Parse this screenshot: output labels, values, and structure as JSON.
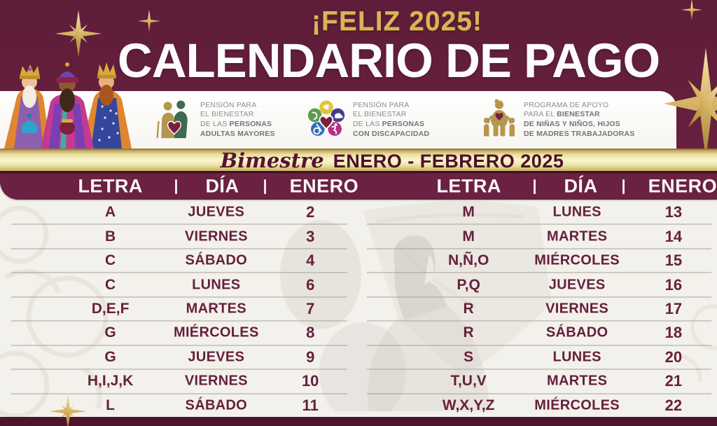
{
  "banner": {
    "greeting": "¡FELIZ 2025!",
    "title": "CALENDARIO DE PAGO"
  },
  "programs": [
    {
      "icon": "elderly-couple-heart-icon",
      "lines": [
        {
          "plain": "PENSIÓN PARA",
          "bold": ""
        },
        {
          "plain": "EL BIENESTAR",
          "bold": ""
        },
        {
          "plain": "DE LAS ",
          "bold": "PERSONAS"
        },
        {
          "plain": "",
          "bold": "ADULTAS MAYORES"
        }
      ]
    },
    {
      "icon": "disability-flower-heart-icon",
      "lines": [
        {
          "plain": "PENSIÓN PARA",
          "bold": ""
        },
        {
          "plain": "EL BIENESTAR",
          "bold": ""
        },
        {
          "plain": "DE LAS ",
          "bold": "PERSONAS"
        },
        {
          "plain": "",
          "bold": "CON DISCAPACIDAD"
        }
      ]
    },
    {
      "icon": "mother-children-heart-icon",
      "lines": [
        {
          "plain": "PROGRAMA DE APOYO",
          "bold": ""
        },
        {
          "plain": "PARA EL ",
          "bold": "BIENESTAR"
        },
        {
          "plain": "",
          "bold": "DE NIÑAS Y NIÑOS, HIJOS"
        },
        {
          "plain": "",
          "bold": "DE MADRES TRABAJADORAS"
        }
      ]
    }
  ],
  "bimestre": {
    "label": "Bimestre",
    "period": "ENERO - FEBRERO 2025"
  },
  "tables": [
    {
      "columns": [
        "LETRA",
        "DÍA",
        "ENERO"
      ],
      "rows": [
        [
          "A",
          "JUEVES",
          "2"
        ],
        [
          "B",
          "VIERNES",
          "3"
        ],
        [
          "C",
          "SÁBADO",
          "4"
        ],
        [
          "C",
          "LUNES",
          "6"
        ],
        [
          "D,E,F",
          "MARTES",
          "7"
        ],
        [
          "G",
          "MIÉRCOLES",
          "8"
        ],
        [
          "G",
          "JUEVES",
          "9"
        ],
        [
          "H,I,J,K",
          "VIERNES",
          "10"
        ],
        [
          "L",
          "SÁBADO",
          "11"
        ]
      ]
    },
    {
      "columns": [
        "LETRA",
        "DÍA",
        "ENERO"
      ],
      "rows": [
        [
          "M",
          "LUNES",
          "13"
        ],
        [
          "M",
          "MARTES",
          "14"
        ],
        [
          "N,Ñ,O",
          "MIÉRCOLES",
          "15"
        ],
        [
          "P,Q",
          "JUEVES",
          "16"
        ],
        [
          "R",
          "VIERNES",
          "17"
        ],
        [
          "R",
          "SÁBADO",
          "18"
        ],
        [
          "S",
          "LUNES",
          "20"
        ],
        [
          "T,U,V",
          "MARTES",
          "21"
        ],
        [
          "W,X,Y,Z",
          "MIÉRCOLES",
          "22"
        ]
      ]
    }
  ],
  "decorations": {
    "stars": "gold-sparkle-star-icon",
    "left_illustration": "three-wise-men-illustration",
    "center_watermark": "woman-with-flag-watermark"
  },
  "colors": {
    "background_maroon": "#5e1c38",
    "header_band_maroon": "#6b2141",
    "gold_band_light": "#faf6cf",
    "gold_accent": "#c9a84e",
    "table_text_maroon": "#66203c",
    "bottom_strip": "#4e142e",
    "white_band": "#ffffff"
  }
}
